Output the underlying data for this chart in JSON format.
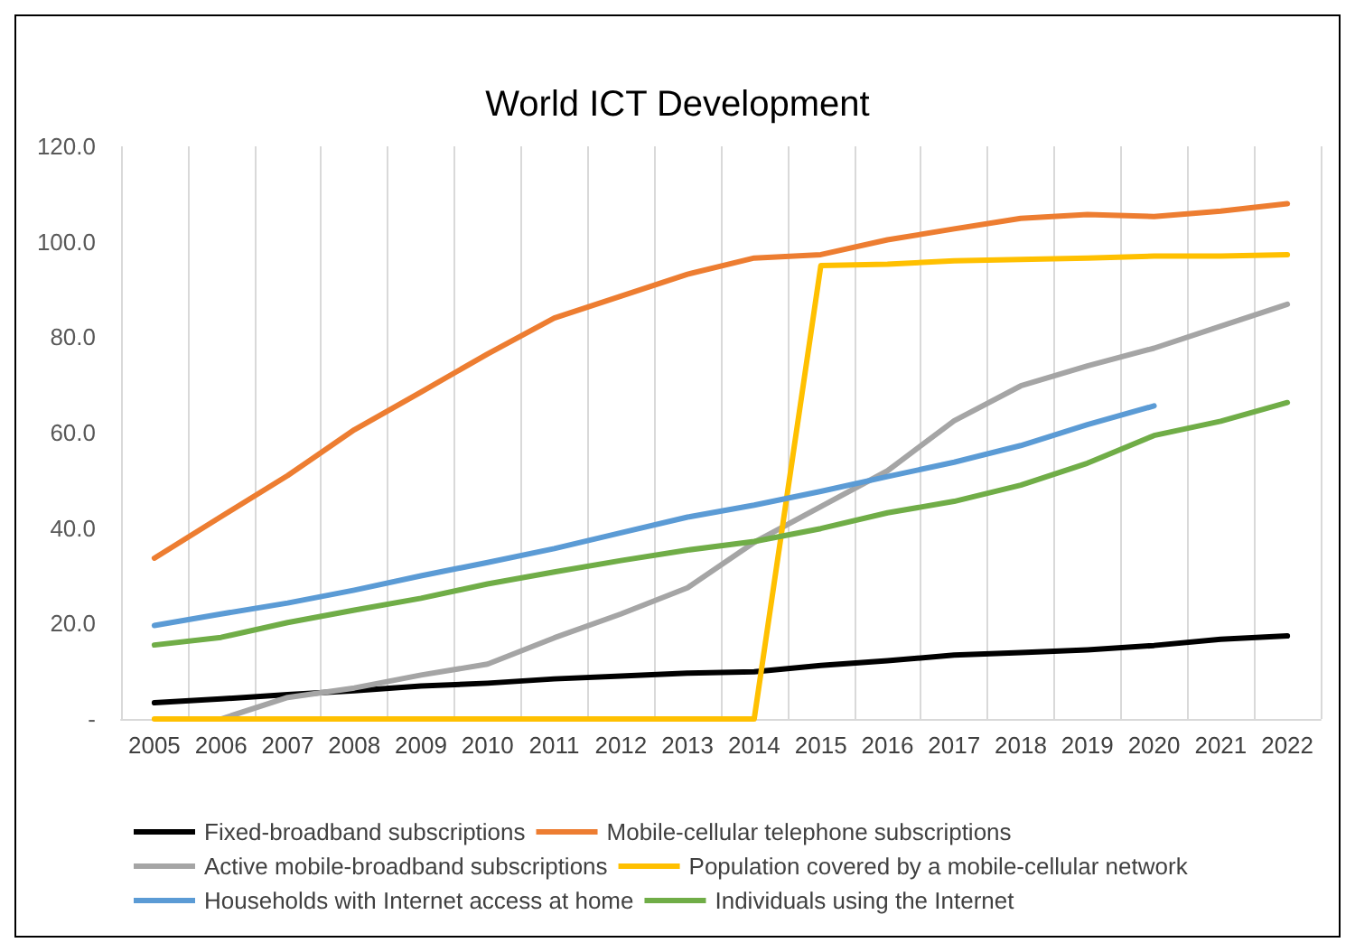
{
  "chart_data": {
    "type": "line",
    "title": "World ICT Development",
    "categories": [
      "2005",
      "2006",
      "2007",
      "2008",
      "2009",
      "2010",
      "2011",
      "2012",
      "2013",
      "2014",
      "2015",
      "2016",
      "2017",
      "2018",
      "2019",
      "2020",
      "2021",
      "2022"
    ],
    "series": [
      {
        "name": "Fixed-broadband subscriptions",
        "color": "#000000",
        "values": [
          3.4,
          4.2,
          5.1,
          5.9,
          6.9,
          7.5,
          8.4,
          9.0,
          9.6,
          9.9,
          11.2,
          12.2,
          13.4,
          13.9,
          14.5,
          15.4,
          16.7,
          17.4
        ]
      },
      {
        "name": "Mobile-cellular telephone subscriptions",
        "color": "#ed7d31",
        "values": [
          33.7,
          42.4,
          51,
          60.6,
          68.5,
          76.5,
          84,
          88.6,
          93.2,
          96.6,
          97.3,
          100.4,
          102.7,
          104.9,
          105.7,
          105.3,
          106.4,
          108
        ]
      },
      {
        "name": "Active mobile-broadband subscriptions",
        "color": "#a5a5a5",
        "values": [
          null,
          0,
          4.5,
          6.5,
          9.2,
          11.5,
          17,
          22,
          27.5,
          37,
          44.5,
          52,
          62.5,
          69.8,
          74,
          77.7,
          82.3,
          86.9
        ]
      },
      {
        "name": "Population covered by a mobile-cellular network",
        "color": "#ffc000",
        "values": [
          0,
          0,
          0,
          0,
          0,
          0,
          0,
          0,
          0,
          0,
          95,
          95.3,
          96,
          96.3,
          96.6,
          97,
          97,
          97.3
        ]
      },
      {
        "name": "Households with Internet access at home",
        "color": "#5b9bd5",
        "values": [
          19.6,
          22,
          24.3,
          27,
          30,
          32.8,
          35.7,
          39,
          42.3,
          44.8,
          47.7,
          50.8,
          53.8,
          57.3,
          61.7,
          65.6,
          null,
          null
        ]
      },
      {
        "name": "Individuals using the Internet",
        "color": "#70ad47",
        "values": [
          15.5,
          17.1,
          20.2,
          22.8,
          25.3,
          28.3,
          30.8,
          33.2,
          35.4,
          37.2,
          39.9,
          43.2,
          45.6,
          49,
          53.6,
          59.4,
          62.4,
          66.3
        ]
      }
    ],
    "ylim": [
      0,
      120
    ],
    "yticks": [
      {
        "value": 0,
        "label": "-"
      },
      {
        "value": 20,
        "label": "20.0"
      },
      {
        "value": 40,
        "label": "40.0"
      },
      {
        "value": 60,
        "label": "60.0"
      },
      {
        "value": 80,
        "label": "80.0"
      },
      {
        "value": 100,
        "label": "100.0"
      },
      {
        "value": 120,
        "label": "120.0"
      }
    ],
    "grid": "x",
    "legend": "bottom",
    "marker": "none",
    "line_style": "solid"
  }
}
